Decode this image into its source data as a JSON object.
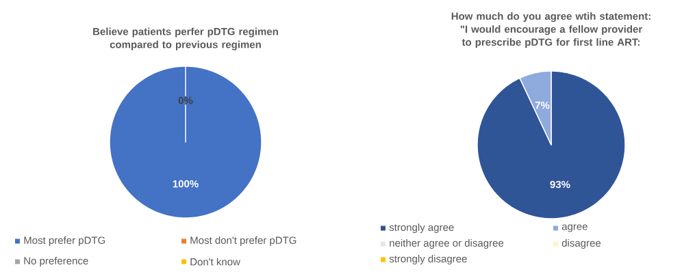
{
  "chart_data": [
    {
      "type": "pie",
      "title": "Believe patients perfer pDTG regimen compared to previous regimen",
      "categories": [
        "Most prefer pDTG",
        "Most don't prefer pDTG",
        "No preference",
        "Don't know"
      ],
      "values": [
        100,
        0,
        0,
        0
      ],
      "colors": [
        "#4472c4",
        "#ed7d31",
        "#a5a5a5",
        "#ffc000"
      ],
      "value_labels": [
        "100%",
        "0%",
        null,
        null
      ],
      "legend": "bottom"
    },
    {
      "type": "pie",
      "title": "How much do you agree wtih statement: \"I would encourage a fellow provider to prescribe pDTG for first line ART:",
      "categories": [
        "strongly agree",
        "agree",
        "neither agree or disagree",
        "disagree",
        "strongly disagree"
      ],
      "values": [
        93,
        7,
        0,
        0,
        0
      ],
      "colors": [
        "#2f5597",
        "#8faadc",
        "#e7e6e6",
        "#fff2cc",
        "#ffc000"
      ],
      "value_labels": [
        "93%",
        "7%",
        null,
        null,
        null
      ],
      "legend": "bottom"
    }
  ]
}
